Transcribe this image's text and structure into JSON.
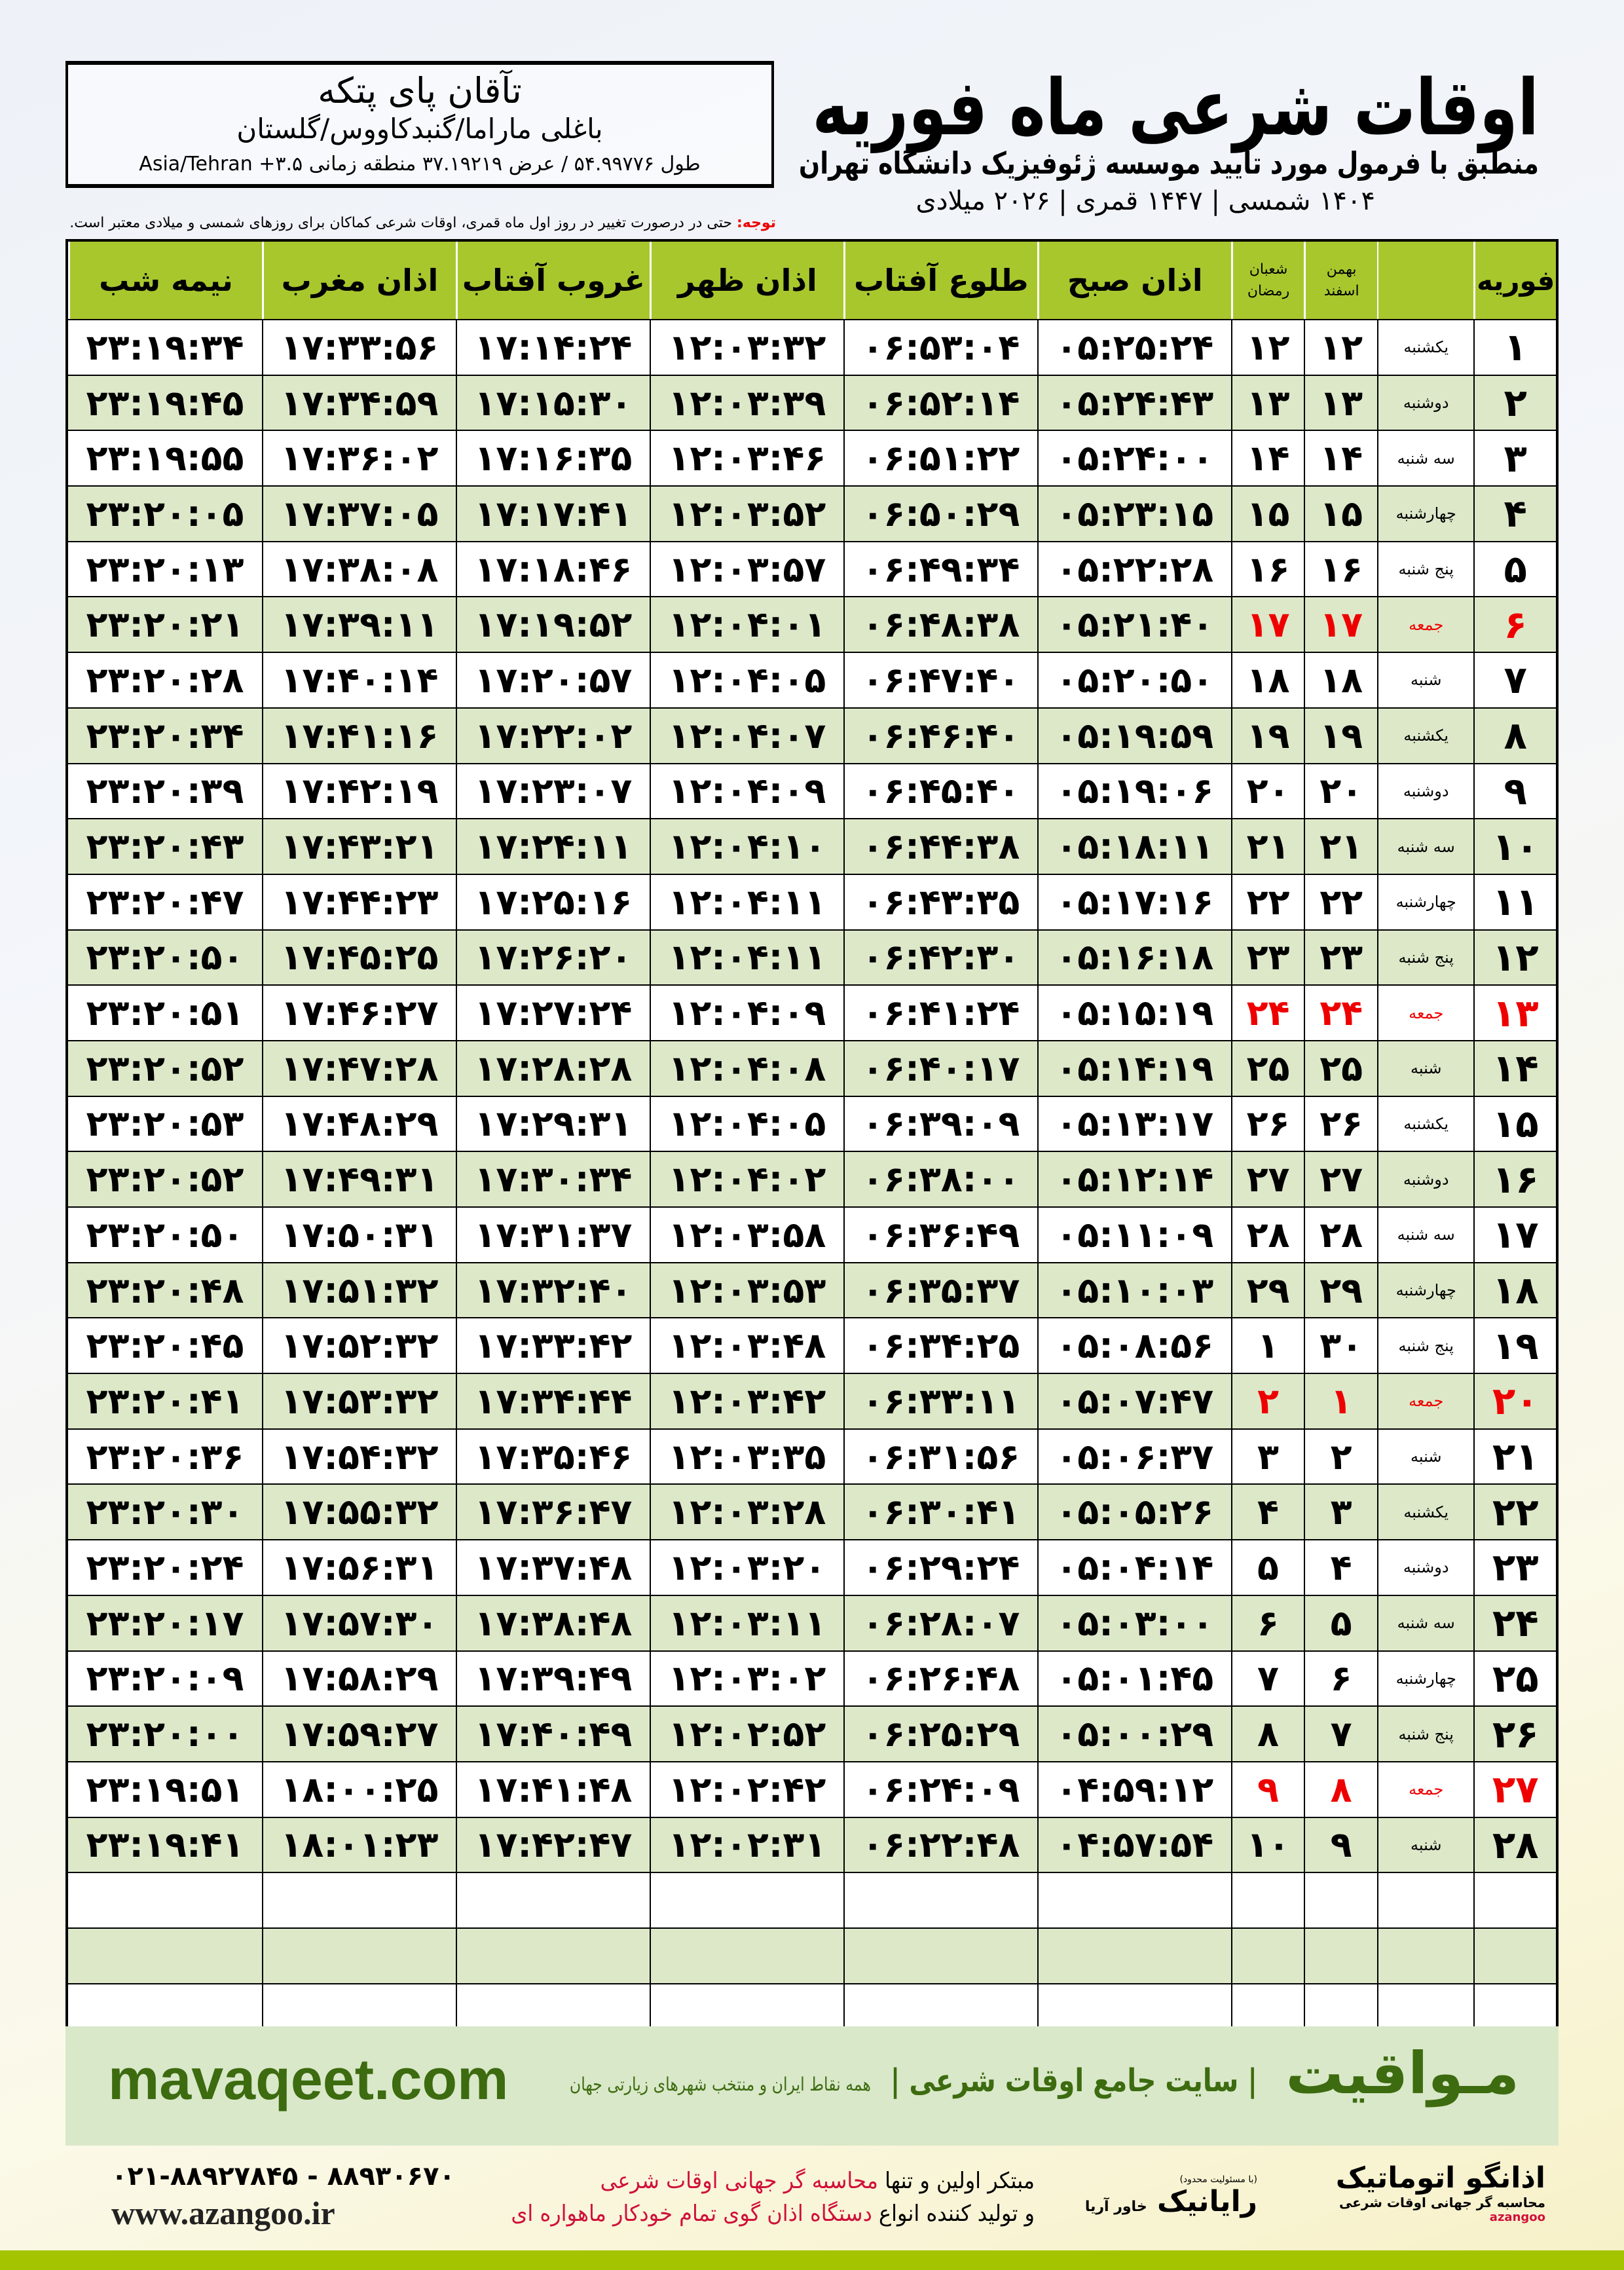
{
  "header": {
    "title": "اوقات شرعی ماه فوریه",
    "subtitle": "منطبق با فرمول مورد تایید موسسه ژئوفیزیک دانشگاه تهران",
    "dates": "۱۴۰۴ شمسی | ۱۴۴۷ قمری | ۲۰۲۶ میلادی"
  },
  "location": {
    "name": "تآقان پای پتکه",
    "path": "باغلی ماراما/گنبدکاووس/گلستان",
    "coords": "طول ۵۴.۹۹۷۷۶ / عرض ۳۷.۱۹۲۱۹ منطقه زمانی ۳.۵+ Asia/Tehran"
  },
  "note": {
    "label": "توجه:",
    "text": " حتی در درصورت تغییر در روز اول ماه قمری، اوقات شرعی کماکان برای روزهای شمسی و میلادی معتبر است."
  },
  "table": {
    "headers": {
      "month": "فوریه",
      "shamsi_top": "بهمن",
      "shamsi_bottom": "اسفند",
      "hijri_top": "شعبان",
      "hijri_bottom": "رمضان",
      "fajr": "اذان صبح",
      "sunrise": "طلوع آفتاب",
      "dhuhr": "اذان ظهر",
      "sunset": "غروب آفتاب",
      "maghrib": "اذان مغرب",
      "midnight": "نیمه شب"
    },
    "friday_color": "#e00000",
    "rows": [
      [
        "۱",
        "یکشنبه",
        "۱۲",
        "۱۲",
        "۰۵:۲۵:۲۴",
        "۰۶:۵۳:۰۴",
        "۱۲:۰۳:۳۲",
        "۱۷:۱۴:۲۴",
        "۱۷:۳۳:۵۶",
        "۲۳:۱۹:۳۴"
      ],
      [
        "۲",
        "دوشنبه",
        "۱۳",
        "۱۳",
        "۰۵:۲۴:۴۳",
        "۰۶:۵۲:۱۴",
        "۱۲:۰۳:۳۹",
        "۱۷:۱۵:۳۰",
        "۱۷:۳۴:۵۹",
        "۲۳:۱۹:۴۵"
      ],
      [
        "۳",
        "سه شنبه",
        "۱۴",
        "۱۴",
        "۰۵:۲۴:۰۰",
        "۰۶:۵۱:۲۲",
        "۱۲:۰۳:۴۶",
        "۱۷:۱۶:۳۵",
        "۱۷:۳۶:۰۲",
        "۲۳:۱۹:۵۵"
      ],
      [
        "۴",
        "چهارشنبه",
        "۱۵",
        "۱۵",
        "۰۵:۲۳:۱۵",
        "۰۶:۵۰:۲۹",
        "۱۲:۰۳:۵۲",
        "۱۷:۱۷:۴۱",
        "۱۷:۳۷:۰۵",
        "۲۳:۲۰:۰۵"
      ],
      [
        "۵",
        "پنج شنبه",
        "۱۶",
        "۱۶",
        "۰۵:۲۲:۲۸",
        "۰۶:۴۹:۳۴",
        "۱۲:۰۳:۵۷",
        "۱۷:۱۸:۴۶",
        "۱۷:۳۸:۰۸",
        "۲۳:۲۰:۱۳"
      ],
      [
        "۶",
        "جمعه",
        "۱۷",
        "۱۷",
        "۰۵:۲۱:۴۰",
        "۰۶:۴۸:۳۸",
        "۱۲:۰۴:۰۱",
        "۱۷:۱۹:۵۲",
        "۱۷:۳۹:۱۱",
        "۲۳:۲۰:۲۱"
      ],
      [
        "۷",
        "شنبه",
        "۱۸",
        "۱۸",
        "۰۵:۲۰:۵۰",
        "۰۶:۴۷:۴۰",
        "۱۲:۰۴:۰۵",
        "۱۷:۲۰:۵۷",
        "۱۷:۴۰:۱۴",
        "۲۳:۲۰:۲۸"
      ],
      [
        "۸",
        "یکشنبه",
        "۱۹",
        "۱۹",
        "۰۵:۱۹:۵۹",
        "۰۶:۴۶:۴۰",
        "۱۲:۰۴:۰۷",
        "۱۷:۲۲:۰۲",
        "۱۷:۴۱:۱۶",
        "۲۳:۲۰:۳۴"
      ],
      [
        "۹",
        "دوشنبه",
        "۲۰",
        "۲۰",
        "۰۵:۱۹:۰۶",
        "۰۶:۴۵:۴۰",
        "۱۲:۰۴:۰۹",
        "۱۷:۲۳:۰۷",
        "۱۷:۴۲:۱۹",
        "۲۳:۲۰:۳۹"
      ],
      [
        "۱۰",
        "سه شنبه",
        "۲۱",
        "۲۱",
        "۰۵:۱۸:۱۱",
        "۰۶:۴۴:۳۸",
        "۱۲:۰۴:۱۰",
        "۱۷:۲۴:۱۱",
        "۱۷:۴۳:۲۱",
        "۲۳:۲۰:۴۳"
      ],
      [
        "۱۱",
        "چهارشنبه",
        "۲۲",
        "۲۲",
        "۰۵:۱۷:۱۶",
        "۰۶:۴۳:۳۵",
        "۱۲:۰۴:۱۱",
        "۱۷:۲۵:۱۶",
        "۱۷:۴۴:۲۳",
        "۲۳:۲۰:۴۷"
      ],
      [
        "۱۲",
        "پنج شنبه",
        "۲۳",
        "۲۳",
        "۰۵:۱۶:۱۸",
        "۰۶:۴۲:۳۰",
        "۱۲:۰۴:۱۱",
        "۱۷:۲۶:۲۰",
        "۱۷:۴۵:۲۵",
        "۲۳:۲۰:۵۰"
      ],
      [
        "۱۳",
        "جمعه",
        "۲۴",
        "۲۴",
        "۰۵:۱۵:۱۹",
        "۰۶:۴۱:۲۴",
        "۱۲:۰۴:۰۹",
        "۱۷:۲۷:۲۴",
        "۱۷:۴۶:۲۷",
        "۲۳:۲۰:۵۱"
      ],
      [
        "۱۴",
        "شنبه",
        "۲۵",
        "۲۵",
        "۰۵:۱۴:۱۹",
        "۰۶:۴۰:۱۷",
        "۱۲:۰۴:۰۸",
        "۱۷:۲۸:۲۸",
        "۱۷:۴۷:۲۸",
        "۲۳:۲۰:۵۲"
      ],
      [
        "۱۵",
        "یکشنبه",
        "۲۶",
        "۲۶",
        "۰۵:۱۳:۱۷",
        "۰۶:۳۹:۰۹",
        "۱۲:۰۴:۰۵",
        "۱۷:۲۹:۳۱",
        "۱۷:۴۸:۲۹",
        "۲۳:۲۰:۵۳"
      ],
      [
        "۱۶",
        "دوشنبه",
        "۲۷",
        "۲۷",
        "۰۵:۱۲:۱۴",
        "۰۶:۳۸:۰۰",
        "۱۲:۰۴:۰۲",
        "۱۷:۳۰:۳۴",
        "۱۷:۴۹:۳۱",
        "۲۳:۲۰:۵۲"
      ],
      [
        "۱۷",
        "سه شنبه",
        "۲۸",
        "۲۸",
        "۰۵:۱۱:۰۹",
        "۰۶:۳۶:۴۹",
        "۱۲:۰۳:۵۸",
        "۱۷:۳۱:۳۷",
        "۱۷:۵۰:۳۱",
        "۲۳:۲۰:۵۰"
      ],
      [
        "۱۸",
        "چهارشنبه",
        "۲۹",
        "۲۹",
        "۰۵:۱۰:۰۳",
        "۰۶:۳۵:۳۷",
        "۱۲:۰۳:۵۳",
        "۱۷:۳۲:۴۰",
        "۱۷:۵۱:۳۲",
        "۲۳:۲۰:۴۸"
      ],
      [
        "۱۹",
        "پنج شنبه",
        "۳۰",
        "۱",
        "۰۵:۰۸:۵۶",
        "۰۶:۳۴:۲۵",
        "۱۲:۰۳:۴۸",
        "۱۷:۳۳:۴۲",
        "۱۷:۵۲:۳۲",
        "۲۳:۲۰:۴۵"
      ],
      [
        "۲۰",
        "جمعه",
        "۱",
        "۲",
        "۰۵:۰۷:۴۷",
        "۰۶:۳۳:۱۱",
        "۱۲:۰۳:۴۲",
        "۱۷:۳۴:۴۴",
        "۱۷:۵۳:۳۲",
        "۲۳:۲۰:۴۱"
      ],
      [
        "۲۱",
        "شنبه",
        "۲",
        "۳",
        "۰۵:۰۶:۳۷",
        "۰۶:۳۱:۵۶",
        "۱۲:۰۳:۳۵",
        "۱۷:۳۵:۴۶",
        "۱۷:۵۴:۳۲",
        "۲۳:۲۰:۳۶"
      ],
      [
        "۲۲",
        "یکشنبه",
        "۳",
        "۴",
        "۰۵:۰۵:۲۶",
        "۰۶:۳۰:۴۱",
        "۱۲:۰۳:۲۸",
        "۱۷:۳۶:۴۷",
        "۱۷:۵۵:۳۲",
        "۲۳:۲۰:۳۰"
      ],
      [
        "۲۳",
        "دوشنبه",
        "۴",
        "۵",
        "۰۵:۰۴:۱۴",
        "۰۶:۲۹:۲۴",
        "۱۲:۰۳:۲۰",
        "۱۷:۳۷:۴۸",
        "۱۷:۵۶:۳۱",
        "۲۳:۲۰:۲۴"
      ],
      [
        "۲۴",
        "سه شنبه",
        "۵",
        "۶",
        "۰۵:۰۳:۰۰",
        "۰۶:۲۸:۰۷",
        "۱۲:۰۳:۱۱",
        "۱۷:۳۸:۴۸",
        "۱۷:۵۷:۳۰",
        "۲۳:۲۰:۱۷"
      ],
      [
        "۲۵",
        "چهارشنبه",
        "۶",
        "۷",
        "۰۵:۰۱:۴۵",
        "۰۶:۲۶:۴۸",
        "۱۲:۰۳:۰۲",
        "۱۷:۳۹:۴۹",
        "۱۷:۵۸:۲۹",
        "۲۳:۲۰:۰۹"
      ],
      [
        "۲۶",
        "پنج شنبه",
        "۷",
        "۸",
        "۰۵:۰۰:۲۹",
        "۰۶:۲۵:۲۹",
        "۱۲:۰۲:۵۲",
        "۱۷:۴۰:۴۹",
        "۱۷:۵۹:۲۷",
        "۲۳:۲۰:۰۰"
      ],
      [
        "۲۷",
        "جمعه",
        "۸",
        "۹",
        "۰۴:۵۹:۱۲",
        "۰۶:۲۴:۰۹",
        "۱۲:۰۲:۴۲",
        "۱۷:۴۱:۴۸",
        "۱۸:۰۰:۲۵",
        "۲۳:۱۹:۵۱"
      ],
      [
        "۲۸",
        "شنبه",
        "۹",
        "۱۰",
        "۰۴:۵۷:۵۴",
        "۰۶:۲۲:۴۸",
        "۱۲:۰۲:۳۱",
        "۱۷:۴۲:۴۷",
        "۱۸:۰۱:۲۳",
        "۲۳:۱۹:۴۱"
      ]
    ]
  },
  "footer": {
    "site": "mavaqeet.com",
    "brand": "مـواقیت",
    "slogan": "| سایت جامع اوقات شرعی |",
    "slogan2": "همه نقاط ایران و منتخب شهرهای زیارتی جهان",
    "promo1a": "مبتکر اولین و تنها ",
    "promo1b": "محاسبه گر جهانی اوقات شرعی",
    "promo2a": "و تولید کننده انواع ",
    "promo2b": "دستگاه اذان گوی تمام خودکار ماهواره ای",
    "phone": "۰۲۱-۸۸۹۲۷۸۴۵ - ۸۸۹۳۰۶۷۰",
    "web": "www.azangoo.ir",
    "logo1": "اذانگو اتوماتیک",
    "logo1sub": "محاسبه گر جهانی اوقات شرعی",
    "logo1en": "azangoo",
    "logo2": "رایانیک",
    "logo2sub": "خاور آریا",
    "logo2note": "(با مسئولیت محدود)",
    "brand_color": "#3d6b10",
    "accent_color": "#a8c72d"
  }
}
